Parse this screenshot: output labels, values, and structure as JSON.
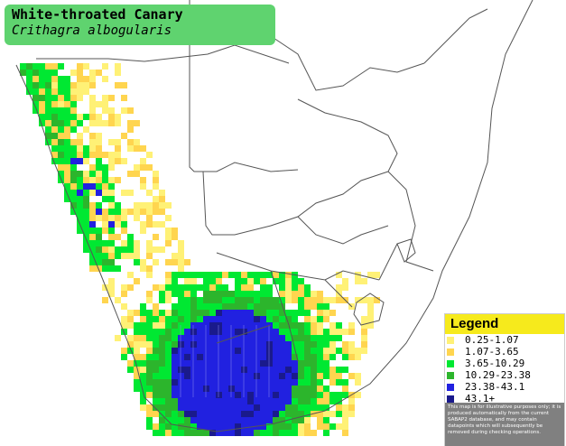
{
  "species": {
    "common_name": "White-throated Canary",
    "scientific_name": "Crithagra albogularis"
  },
  "legend": {
    "title": "Legend",
    "items": [
      {
        "label": "0.25-1.07",
        "color": "#fff176"
      },
      {
        "label": "1.07-3.65",
        "color": "#ffd54f"
      },
      {
        "label": "3.65-10.29",
        "color": "#00e832"
      },
      {
        "label": "10.29-23.38",
        "color": "#2cb52c"
      },
      {
        "label": "23.38-43.1",
        "color": "#2121e0"
      },
      {
        "label": "43.1+",
        "color": "#1a1a8c"
      }
    ],
    "disclaimer": "This map is for illustrative purposes only; it is produced automatically from the current SABAP2 database, and may contain datapoints which will subsequently be removed during checking operations."
  },
  "map": {
    "background_color": "#ffffff",
    "border_color": "#555555"
  }
}
